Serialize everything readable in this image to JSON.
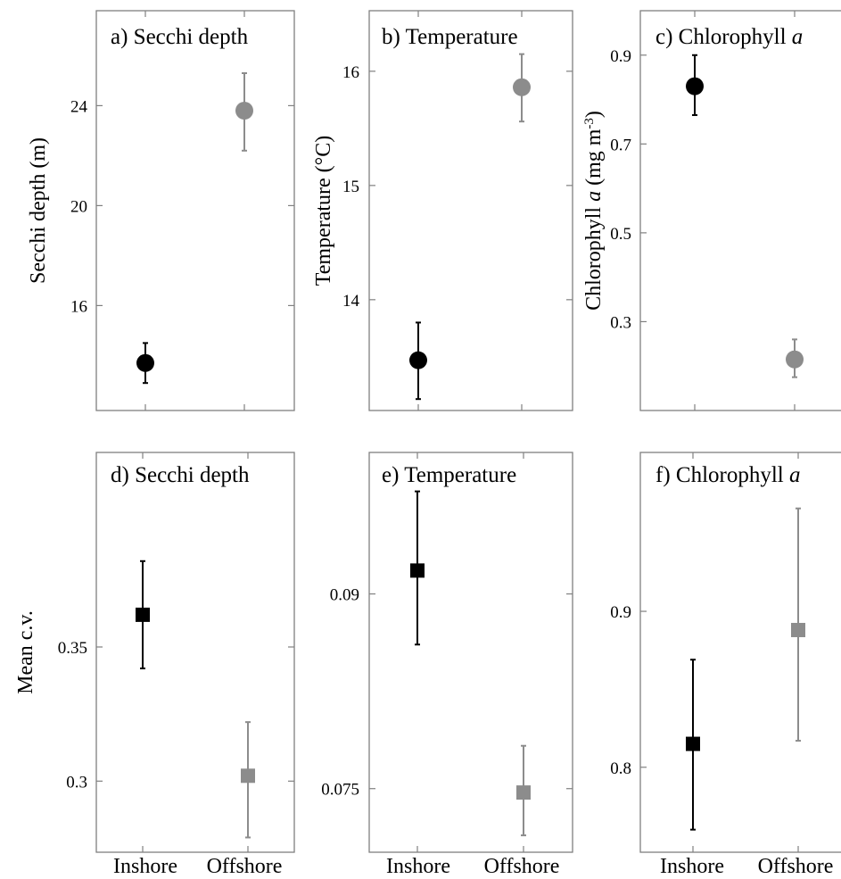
{
  "chart_data": [
    {
      "id": "a",
      "type": "scatter",
      "title": "a) Secchi depth",
      "ylabel": "Secchi depth (m)",
      "categories": [
        "Inshore",
        "Offshore"
      ],
      "ylim": [
        11.8,
        27.8
      ],
      "yticks": [
        16,
        20,
        24
      ],
      "tick_labels": [
        "16",
        "20",
        "24"
      ],
      "marker": "circle",
      "points": [
        {
          "category": "Inshore",
          "value": 13.7,
          "low": 12.9,
          "high": 14.5,
          "color": "#000000"
        },
        {
          "category": "Offshore",
          "value": 23.8,
          "low": 22.2,
          "high": 25.3,
          "color": "#8c8c8c"
        }
      ]
    },
    {
      "id": "b",
      "type": "scatter",
      "title": "b) Temperature",
      "ylabel": "Temperature (°C)",
      "categories": [
        "Inshore",
        "Offshore"
      ],
      "ylim": [
        13.03,
        16.53
      ],
      "yticks": [
        14,
        15,
        16
      ],
      "tick_labels": [
        "14",
        "15",
        "16"
      ],
      "marker": "circle",
      "points": [
        {
          "category": "Inshore",
          "value": 13.47,
          "low": 13.13,
          "high": 13.8,
          "color": "#000000"
        },
        {
          "category": "Offshore",
          "value": 15.86,
          "low": 15.56,
          "high": 16.15,
          "color": "#8c8c8c"
        }
      ]
    },
    {
      "id": "c",
      "type": "scatter",
      "title_text": "c) Chlorophyll ",
      "title_italic": "a",
      "ylabel_pre": "Chlorophyll ",
      "ylabel_italic": "a",
      "ylabel_post": " (mg m",
      "ylabel_sup": "-3",
      "ylabel_end": ")",
      "categories": [
        "Inshore",
        "Offshore"
      ],
      "ylim": [
        0.1,
        1.0
      ],
      "yticks": [
        0.3,
        0.5,
        0.7,
        0.9
      ],
      "tick_labels": [
        "0.3",
        "0.5",
        "0.7",
        "0.9"
      ],
      "marker": "circle",
      "points": [
        {
          "category": "Inshore",
          "value": 0.83,
          "low": 0.765,
          "high": 0.9,
          "color": "#000000"
        },
        {
          "category": "Offshore",
          "value": 0.215,
          "low": 0.175,
          "high": 0.26,
          "color": "#8c8c8c"
        }
      ]
    },
    {
      "id": "d",
      "type": "scatter",
      "title": "d) Secchi depth",
      "ylabel": "Mean c.v.",
      "categories": [
        "Inshore",
        "Offshore"
      ],
      "xtick_labels": [
        "Inshore",
        "Offshore"
      ],
      "ylim": [
        0.2735,
        0.4225
      ],
      "yticks": [
        0.3,
        0.35
      ],
      "tick_labels": [
        "0.3",
        "0.35"
      ],
      "marker": "square",
      "points": [
        {
          "category": "Inshore",
          "value": 0.362,
          "low": 0.342,
          "high": 0.382,
          "color": "#000000"
        },
        {
          "category": "Offshore",
          "value": 0.302,
          "low": 0.279,
          "high": 0.322,
          "color": "#8c8c8c"
        }
      ]
    },
    {
      "id": "e",
      "type": "scatter",
      "title": "e) Temperature",
      "ylabel": "",
      "categories": [
        "Inshore",
        "Offshore"
      ],
      "xtick_labels": [
        "Inshore",
        "Offshore"
      ],
      "ylim": [
        0.0701,
        0.1009
      ],
      "yticks": [
        0.075,
        0.09
      ],
      "tick_labels": [
        "0.075",
        "0.09"
      ],
      "marker": "square",
      "points": [
        {
          "category": "Inshore",
          "value": 0.0918,
          "low": 0.0861,
          "high": 0.0979,
          "color": "#000000"
        },
        {
          "category": "Offshore",
          "value": 0.0747,
          "low": 0.0714,
          "high": 0.0783,
          "color": "#8c8c8c"
        }
      ]
    },
    {
      "id": "f",
      "type": "scatter",
      "title_text": "f) Chlorophyll ",
      "title_italic": "a",
      "ylabel": "",
      "categories": [
        "Inshore",
        "Offshore"
      ],
      "xtick_labels": [
        "Inshore",
        "Offshore"
      ],
      "ylim": [
        0.7455,
        1.0019
      ],
      "yticks": [
        0.8,
        0.9
      ],
      "tick_labels": [
        "0.8",
        "0.9"
      ],
      "marker": "square",
      "points": [
        {
          "category": "Inshore",
          "value": 0.815,
          "low": 0.76,
          "high": 0.869,
          "color": "#000000"
        },
        {
          "category": "Offshore",
          "value": 0.888,
          "low": 0.817,
          "high": 0.966,
          "color": "#8c8c8c"
        }
      ]
    }
  ]
}
